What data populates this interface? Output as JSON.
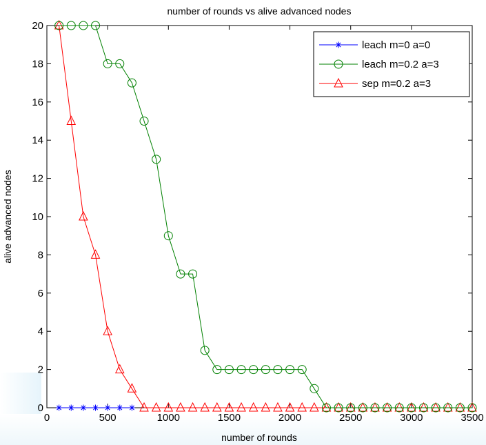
{
  "chart_data": {
    "type": "line",
    "title": "number of rounds vs alive advanced nodes",
    "xlabel": "number of rounds",
    "ylabel": "alive advanced nodes",
    "xlim": [
      0,
      3500
    ],
    "ylim": [
      0,
      20
    ],
    "xticks": [
      0,
      500,
      1000,
      1500,
      2000,
      2500,
      3000,
      3500
    ],
    "yticks": [
      0,
      2,
      4,
      6,
      8,
      10,
      12,
      14,
      16,
      18,
      20
    ],
    "grid": false,
    "legend_position": "top-right",
    "x": [
      100,
      200,
      300,
      400,
      500,
      600,
      700,
      800,
      900,
      1000,
      1100,
      1200,
      1300,
      1400,
      1500,
      1600,
      1700,
      1800,
      1900,
      2000,
      2100,
      2200,
      2300,
      2400,
      2500,
      2600,
      2700,
      2800,
      2900,
      3000,
      3100,
      3200,
      3300,
      3400,
      3500
    ],
    "series": [
      {
        "name": "leach m=0 a=0",
        "color": "#0000ff",
        "marker": "star",
        "x": [
          100,
          200,
          300,
          400,
          500,
          600,
          700
        ],
        "values": [
          0,
          0,
          0,
          0,
          0,
          0,
          0
        ]
      },
      {
        "name": "leach m=0.2 a=3",
        "color": "#008000",
        "marker": "circle",
        "values": [
          20,
          20,
          20,
          20,
          18,
          18,
          17,
          15,
          13,
          9,
          7,
          7,
          3,
          2,
          2,
          2,
          2,
          2,
          2,
          2,
          2,
          1,
          0,
          0,
          0,
          0,
          0,
          0,
          0,
          0,
          0,
          0,
          0,
          0,
          0
        ]
      },
      {
        "name": "sep m=0.2 a=3",
        "color": "#ff0000",
        "marker": "triangle",
        "values": [
          20,
          15,
          10,
          8,
          4,
          2,
          1,
          0,
          0,
          0,
          0,
          0,
          0,
          0,
          0,
          0,
          0,
          0,
          0,
          0,
          0,
          0,
          0,
          0,
          0,
          0,
          0,
          0,
          0,
          0,
          0,
          0,
          0,
          0,
          0
        ]
      }
    ]
  }
}
